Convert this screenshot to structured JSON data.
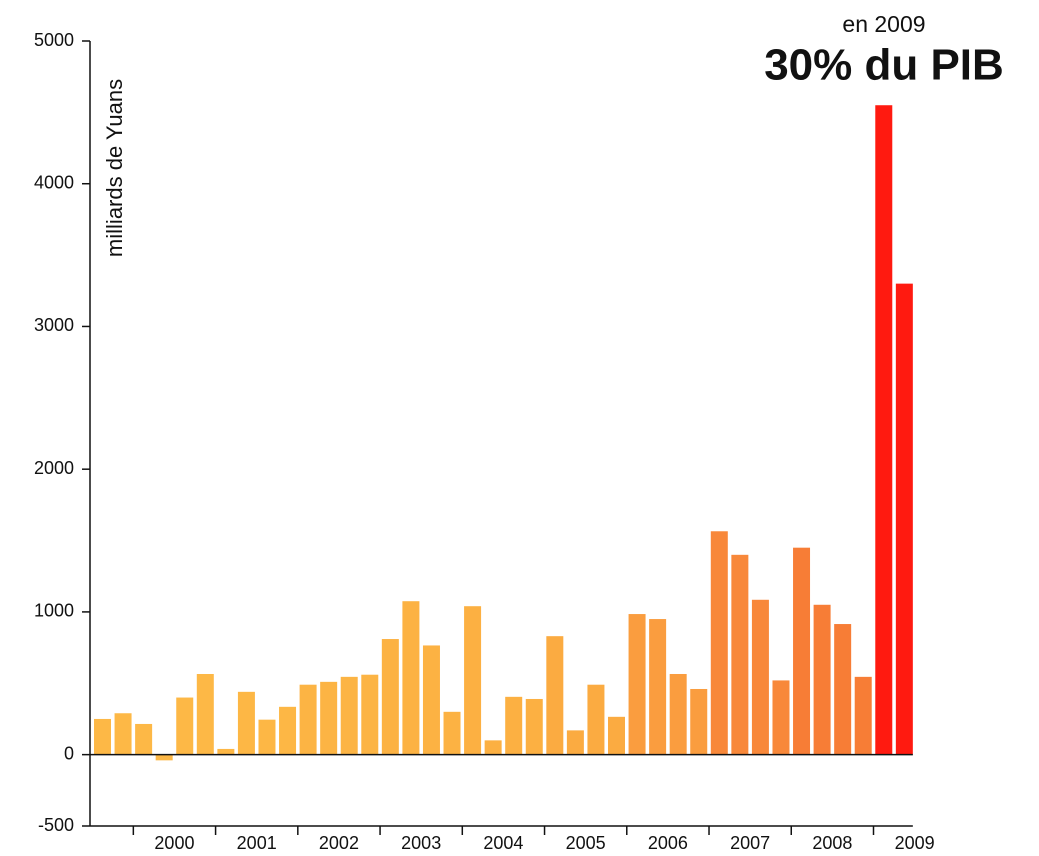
{
  "chart_data": {
    "type": "bar",
    "title": "30% du PIB",
    "subtitle": "en 2009",
    "y_label": "milliards de Yuans",
    "categories": [
      null,
      null,
      "2000",
      "2000",
      "2000",
      "2000",
      "2001",
      "2001",
      "2001",
      "2001",
      "2002",
      "2002",
      "2002",
      "2002",
      "2003",
      "2003",
      "2003",
      "2003",
      "2004",
      "2004",
      "2004",
      "2004",
      "2005",
      "2005",
      "2005",
      "2005",
      "2006",
      "2006",
      "2006",
      "2006",
      "2007",
      "2007",
      "2007",
      "2007",
      "2008",
      "2008",
      "2008",
      "2008",
      "2009",
      "2009"
    ],
    "values": [
      250,
      290,
      215,
      -40,
      400,
      565,
      40,
      440,
      245,
      335,
      490,
      510,
      545,
      560,
      810,
      1075,
      765,
      300,
      1040,
      100,
      405,
      390,
      830,
      170,
      490,
      265,
      985,
      950,
      565,
      460,
      1565,
      1400,
      1085,
      520,
      1450,
      1050,
      915,
      545,
      4550,
      3300
    ],
    "colors": [
      "#fdb846",
      "#fdb846",
      "#fdb846",
      "#fdb846",
      "#fdb846",
      "#fdb846",
      "#fdb745",
      "#fdb745",
      "#fdb745",
      "#fdb745",
      "#fcb444",
      "#fcb444",
      "#fcb444",
      "#fcb444",
      "#fcb243",
      "#fcb243",
      "#fcb243",
      "#fcb243",
      "#fcb042",
      "#fcb042",
      "#fcb042",
      "#fcb042",
      "#fbab41",
      "#fbab41",
      "#fbab41",
      "#fbab41",
      "#fa9d3f",
      "#fa9d3f",
      "#fa9d3f",
      "#fa9d3f",
      "#f8883a",
      "#f8883a",
      "#f8883a",
      "#f8883a",
      "#f77d36",
      "#f77d36",
      "#f77d36",
      "#f77d36",
      "#ff1a10",
      "#ff1a10"
    ],
    "ylim": [
      -500,
      5000
    ],
    "yticks": [
      -500,
      0,
      1000,
      2000,
      3000,
      4000,
      5000
    ]
  }
}
